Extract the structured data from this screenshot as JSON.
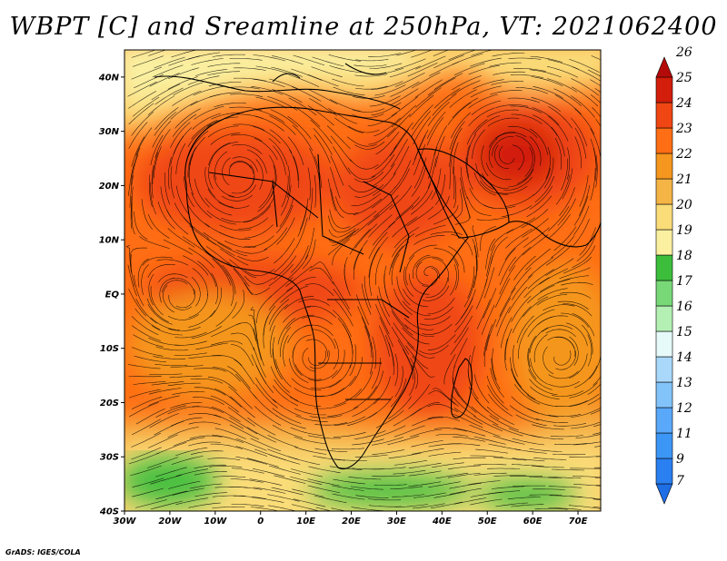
{
  "title": "WBPT [C] and Sreamline at 250hPa, VT: 2021062400",
  "credit": "GrADS: IGES/COLA",
  "map": {
    "lon_range": [
      -30,
      75
    ],
    "lat_range": [
      -40,
      45
    ],
    "x_ticks": [
      -30,
      -20,
      -10,
      0,
      10,
      20,
      30,
      40,
      50,
      60,
      70
    ],
    "x_tick_labels": [
      "30W",
      "20W",
      "10W",
      "0",
      "10E",
      "20E",
      "30E",
      "40E",
      "50E",
      "60E",
      "70E"
    ],
    "y_ticks": [
      -40,
      -30,
      -20,
      -10,
      0,
      10,
      20,
      30,
      40
    ],
    "y_tick_labels": [
      "40S",
      "30S",
      "20S",
      "10S",
      "EQ",
      "10N",
      "20N",
      "30N",
      "40N"
    ]
  },
  "colorbar": {
    "levels": [
      "7",
      "9",
      "11",
      "12",
      "13",
      "14",
      "15",
      "16",
      "17",
      "18",
      "19",
      "20",
      "21",
      "22",
      "23",
      "24",
      "25",
      "26"
    ],
    "colors": [
      "#1e6ee6",
      "#2a80f0",
      "#3c96f5",
      "#5aa8fa",
      "#82c4fa",
      "#aad8fa",
      "#e6fafa",
      "#b4f0b4",
      "#78d878",
      "#3cbe3c",
      "#faf0a0",
      "#fadc78",
      "#f5b446",
      "#f5961e",
      "#ff6e14",
      "#f04614",
      "#d21e0a",
      "#b40a0a"
    ]
  }
}
